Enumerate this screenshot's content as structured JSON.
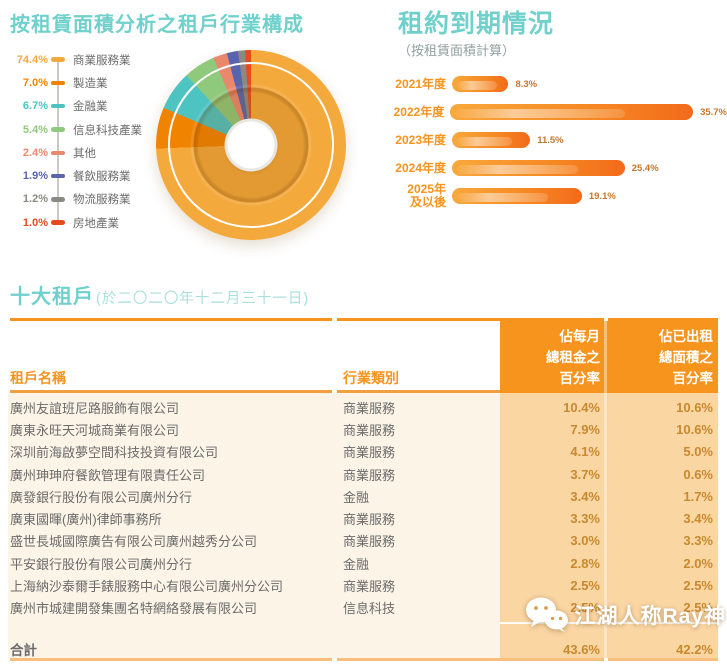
{
  "colors": {
    "accent_teal": "#6FD0CC",
    "accent_teal_light": "#A9DFDD",
    "accent_orange": "#F7941E",
    "band_light_orange": "#FAD6A3",
    "body_cream": "#FDF4E8",
    "value_text": "#C88930"
  },
  "chart_data": [
    {
      "type": "pie",
      "title": "按租賃面積分析之租戶行業構成",
      "legend_position": "left",
      "segments": [
        {
          "label": "商業服務業",
          "value": 74.4,
          "pct": "74.4%",
          "color": "#F4A93C"
        },
        {
          "label": "製造業",
          "value": 7.0,
          "pct": "7.0%",
          "color": "#F08300"
        },
        {
          "label": "金融業",
          "value": 6.7,
          "pct": "6.7%",
          "color": "#4DC4C2"
        },
        {
          "label": "信息科技產業",
          "value": 5.4,
          "pct": "5.4%",
          "color": "#8FC97B"
        },
        {
          "label": "其他",
          "value": 2.4,
          "pct": "2.4%",
          "color": "#E9886C"
        },
        {
          "label": "餐飲服務業",
          "value": 1.9,
          "pct": "1.9%",
          "color": "#5A63AD"
        },
        {
          "label": "物流服務業",
          "value": 1.2,
          "pct": "1.2%",
          "color": "#8A8A82"
        },
        {
          "label": "房地產業",
          "value": 1.0,
          "pct": "1.0%",
          "color": "#E84A1F"
        }
      ]
    },
    {
      "type": "bar",
      "title": "租約到期情況",
      "subtitle": "（按租賃面積計算）",
      "orientation": "horizontal",
      "xlim": [
        0,
        36
      ],
      "bars": [
        {
          "label": "2021年度",
          "value": 8.3,
          "display": "8.3%"
        },
        {
          "label": "2022年度",
          "value": 35.7,
          "display": "35.7%"
        },
        {
          "label": "2023年度",
          "value": 11.5,
          "display": "11.5%"
        },
        {
          "label": "2024年度",
          "value": 25.4,
          "display": "25.4%"
        },
        {
          "label": "2025年\n及以後",
          "value": 19.1,
          "display": "19.1%"
        }
      ]
    }
  ],
  "table": {
    "title": "十大租戶",
    "title_note": "(於二〇二〇年十二月三十一日)",
    "header": {
      "col_name": "租戶名稱",
      "col_industry": "行業類別",
      "col_rent": "佔每月\n總租金之\n百分率",
      "col_area": "佔已出租\n總面積之\n百分率"
    },
    "rows": [
      {
        "name": "廣州友誼班尼路服飾有限公司",
        "industry": "商業服務",
        "rent_pct": "10.4%",
        "area_pct": "10.6%"
      },
      {
        "name": "廣東永旺天河城商業有限公司",
        "industry": "商業服務",
        "rent_pct": "7.9%",
        "area_pct": "10.6%"
      },
      {
        "name": "深圳前海啟夢空間科技投資有限公司",
        "industry": "商業服務",
        "rent_pct": "4.1%",
        "area_pct": "5.0%"
      },
      {
        "name": "廣州珅珅府餐飲管理有限責任公司",
        "industry": "商業服務",
        "rent_pct": "3.7%",
        "area_pct": "0.6%"
      },
      {
        "name": "廣發銀行股份有限公司廣州分行",
        "industry": "金融",
        "rent_pct": "3.4%",
        "area_pct": "1.7%"
      },
      {
        "name": "廣東國暉(廣州)律師事務所",
        "industry": "商業服務",
        "rent_pct": "3.3%",
        "area_pct": "3.4%"
      },
      {
        "name": "盛世長城國際廣告有限公司廣州越秀分公司",
        "industry": "商業服務",
        "rent_pct": "3.0%",
        "area_pct": "3.3%"
      },
      {
        "name": "平安銀行股份有限公司廣州分行",
        "industry": "金融",
        "rent_pct": "2.8%",
        "area_pct": "2.0%"
      },
      {
        "name": "上海納沙泰爾手錶服務中心有限公司廣州分公司",
        "industry": "商業服務",
        "rent_pct": "2.5%",
        "area_pct": "2.5%"
      },
      {
        "name": "廣州市城建開發集團名特網絡發展有限公司",
        "industry": "信息科技",
        "rent_pct": "2.5%",
        "area_pct": "2.5%"
      }
    ],
    "total": {
      "label": "合計",
      "rent_pct": "43.6%",
      "area_pct": "42.2%"
    }
  },
  "watermark": {
    "text": "江湖人称Ray神",
    "icon": "wechat-icon"
  }
}
